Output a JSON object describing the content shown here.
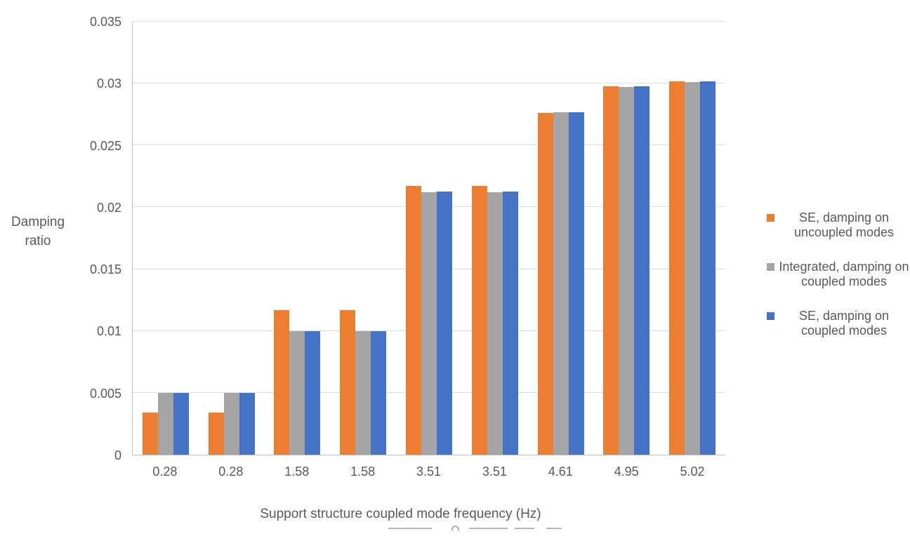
{
  "chart_data": {
    "type": "bar",
    "title": "",
    "xlabel": "Support structure coupled mode frequency (Hz)",
    "ylabel": "Damping ratio",
    "ylabel_lines": [
      "Damping",
      "ratio"
    ],
    "categories": [
      "0.28",
      "0.28",
      "1.58",
      "1.58",
      "3.51",
      "3.51",
      "4.61",
      "4.95",
      "5.02"
    ],
    "series": [
      {
        "name": "SE, damping on uncoupled modes",
        "color": "#ED7D31",
        "values": [
          0.0034,
          0.0034,
          0.0117,
          0.0117,
          0.0217,
          0.0217,
          0.0276,
          0.0298,
          0.0302
        ]
      },
      {
        "name": "Integrated, damping on coupled modes",
        "color": "#A5A5A5",
        "values": [
          0.005,
          0.005,
          0.01,
          0.01,
          0.0212,
          0.0212,
          0.0277,
          0.0297,
          0.0301
        ]
      },
      {
        "name": "SE, damping on coupled modes",
        "color": "#4472C4",
        "values": [
          0.005,
          0.005,
          0.01,
          0.01,
          0.0213,
          0.0213,
          0.0277,
          0.0298,
          0.0302
        ]
      }
    ],
    "ylim": [
      0,
      0.035
    ],
    "yticks": [
      0,
      0.005,
      0.01,
      0.015,
      0.02,
      0.025,
      0.03,
      0.035
    ],
    "ytick_labels": [
      "0",
      "0.005",
      "0.01",
      "0.015",
      "0.02",
      "0.025",
      "0.03",
      "0.035"
    ],
    "grid": true,
    "legend_position": "right"
  },
  "colors": {
    "series_orange": "#ED7D31",
    "series_gray": "#A5A5A5",
    "series_blue": "#4472C4",
    "gridline": "#D9D9D9",
    "axis_line": "#BFBFBF",
    "text": "#595959",
    "background": "#FFFFFF"
  }
}
